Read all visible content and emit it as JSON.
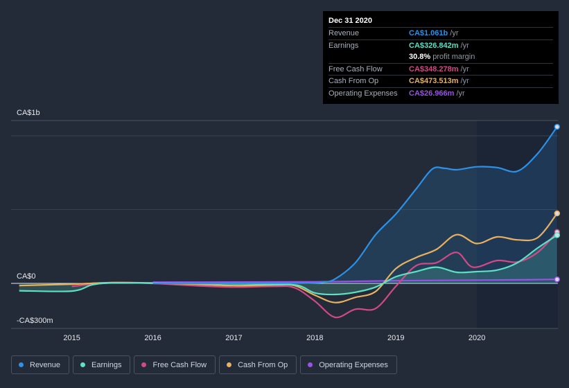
{
  "chart_data": {
    "type": "area",
    "title": "",
    "xlabel": "",
    "ylabel": "",
    "ylim": [
      -300,
      1060
    ],
    "y_ticks": [
      {
        "value": 1000,
        "label": "CA$1b"
      },
      {
        "value": 0,
        "label": "CA$0"
      },
      {
        "value": -300,
        "label": "-CA$300m"
      }
    ],
    "x_ticks": [
      {
        "value": 2015,
        "label": "2015"
      },
      {
        "value": 2016,
        "label": "2016"
      },
      {
        "value": 2017,
        "label": "2017"
      },
      {
        "value": 2018,
        "label": "2018"
      },
      {
        "value": 2019,
        "label": "2019"
      },
      {
        "value": 2020,
        "label": "2020"
      }
    ],
    "xlim": [
      2014.25,
      2021.0
    ],
    "highlight_from": 2020.0,
    "series": [
      {
        "name": "Revenue",
        "color": "#2e91e5",
        "fill": true,
        "points": [
          [
            2016.0,
            0
          ],
          [
            2017.0,
            0
          ],
          [
            2017.5,
            2
          ],
          [
            2017.9,
            3
          ],
          [
            2018.1,
            8
          ],
          [
            2018.25,
            30
          ],
          [
            2018.5,
            140
          ],
          [
            2018.75,
            330
          ],
          [
            2019.0,
            470
          ],
          [
            2019.25,
            640
          ],
          [
            2019.45,
            775
          ],
          [
            2019.6,
            780
          ],
          [
            2019.75,
            770
          ],
          [
            2020.0,
            790
          ],
          [
            2020.25,
            785
          ],
          [
            2020.5,
            760
          ],
          [
            2020.75,
            880
          ],
          [
            2020.99,
            1061
          ]
        ]
      },
      {
        "name": "Earnings",
        "color": "#5ee0c4",
        "fill": true,
        "points": [
          [
            2014.35,
            -50
          ],
          [
            2015.0,
            -52
          ],
          [
            2015.25,
            -10
          ],
          [
            2015.5,
            3
          ],
          [
            2016.0,
            2
          ],
          [
            2016.5,
            0
          ],
          [
            2017.0,
            -3
          ],
          [
            2017.5,
            -5
          ],
          [
            2017.8,
            -15
          ],
          [
            2018.0,
            -65
          ],
          [
            2018.25,
            -75
          ],
          [
            2018.5,
            -60
          ],
          [
            2018.75,
            -25
          ],
          [
            2019.0,
            45
          ],
          [
            2019.25,
            80
          ],
          [
            2019.5,
            110
          ],
          [
            2019.75,
            75
          ],
          [
            2020.0,
            80
          ],
          [
            2020.25,
            90
          ],
          [
            2020.5,
            140
          ],
          [
            2020.75,
            240
          ],
          [
            2020.99,
            327
          ]
        ]
      },
      {
        "name": "Free Cash Flow",
        "color": "#d14a86",
        "fill": false,
        "points": [
          [
            2015.0,
            -20
          ],
          [
            2015.5,
            5
          ],
          [
            2016.0,
            0
          ],
          [
            2016.5,
            -15
          ],
          [
            2017.0,
            -25
          ],
          [
            2017.5,
            -20
          ],
          [
            2017.75,
            -30
          ],
          [
            2018.0,
            -120
          ],
          [
            2018.25,
            -230
          ],
          [
            2018.5,
            -175
          ],
          [
            2018.75,
            -170
          ],
          [
            2019.0,
            -20
          ],
          [
            2019.25,
            120
          ],
          [
            2019.5,
            140
          ],
          [
            2019.75,
            210
          ],
          [
            2019.95,
            110
          ],
          [
            2020.25,
            155
          ],
          [
            2020.5,
            145
          ],
          [
            2020.75,
            210
          ],
          [
            2020.99,
            348
          ]
        ]
      },
      {
        "name": "Cash From Op",
        "color": "#e8b061",
        "fill": false,
        "points": [
          [
            2014.35,
            -15
          ],
          [
            2015.0,
            -5
          ],
          [
            2015.5,
            5
          ],
          [
            2016.0,
            3
          ],
          [
            2016.5,
            -5
          ],
          [
            2017.0,
            -15
          ],
          [
            2017.5,
            -10
          ],
          [
            2017.75,
            -15
          ],
          [
            2018.0,
            -80
          ],
          [
            2018.25,
            -130
          ],
          [
            2018.5,
            -95
          ],
          [
            2018.75,
            -55
          ],
          [
            2019.0,
            100
          ],
          [
            2019.25,
            175
          ],
          [
            2019.5,
            230
          ],
          [
            2019.75,
            330
          ],
          [
            2020.0,
            270
          ],
          [
            2020.25,
            315
          ],
          [
            2020.5,
            295
          ],
          [
            2020.75,
            310
          ],
          [
            2020.99,
            474
          ]
        ]
      },
      {
        "name": "Operating Expenses",
        "color": "#9a52e8",
        "fill": false,
        "points": [
          [
            2016.0,
            8
          ],
          [
            2017.0,
            9
          ],
          [
            2018.0,
            11
          ],
          [
            2018.5,
            14
          ],
          [
            2019.0,
            18
          ],
          [
            2019.5,
            20
          ],
          [
            2020.0,
            22
          ],
          [
            2020.5,
            24
          ],
          [
            2020.99,
            27
          ]
        ]
      }
    ]
  },
  "tooltip": {
    "date": "Dec 31 2020",
    "rows": [
      {
        "label": "Revenue",
        "value": "CA$1.061b",
        "unit": "/yr",
        "color": "#2e91e5"
      },
      {
        "label": "Earnings",
        "value": "CA$326.842m",
        "unit": "/yr",
        "color": "#5ee0c4"
      },
      {
        "label": "",
        "value": "30.8%",
        "unit": "profit margin",
        "color": "#ffffff"
      },
      {
        "label": "Free Cash Flow",
        "value": "CA$348.278m",
        "unit": "/yr",
        "color": "#d14a86"
      },
      {
        "label": "Cash From Op",
        "value": "CA$473.513m",
        "unit": "/yr",
        "color": "#e8b061"
      },
      {
        "label": "Operating Expenses",
        "value": "CA$26.966m",
        "unit": "/yr",
        "color": "#9a52e8"
      }
    ]
  },
  "legend": [
    {
      "label": "Revenue",
      "color": "#2e91e5"
    },
    {
      "label": "Earnings",
      "color": "#5ee0c4"
    },
    {
      "label": "Free Cash Flow",
      "color": "#d14a86"
    },
    {
      "label": "Cash From Op",
      "color": "#e8b061"
    },
    {
      "label": "Operating Expenses",
      "color": "#9a52e8"
    }
  ]
}
